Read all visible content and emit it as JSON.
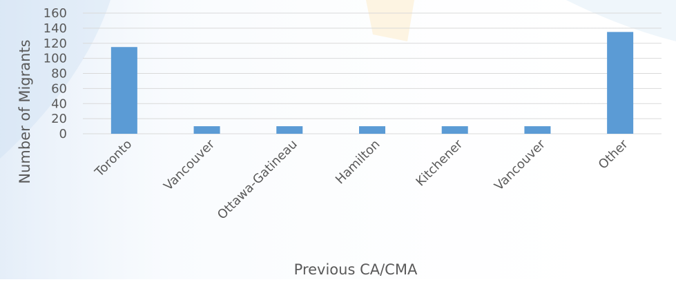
{
  "chart_data": {
    "type": "bar",
    "categories": [
      "Toronto",
      "Vancouver",
      "Ottawa-Gatineau",
      "Hamilton",
      "Kitchener",
      "Vancouver",
      "Other"
    ],
    "values": [
      115,
      10,
      10,
      10,
      10,
      10,
      135
    ],
    "xlabel": "Previous CA/CMA",
    "ylabel": "Number of Migrants",
    "ylim": [
      0,
      160
    ],
    "yticks": [
      0,
      20,
      40,
      60,
      80,
      100,
      120,
      140,
      160
    ],
    "grid": true,
    "bar_color": "#5b9bd5"
  }
}
